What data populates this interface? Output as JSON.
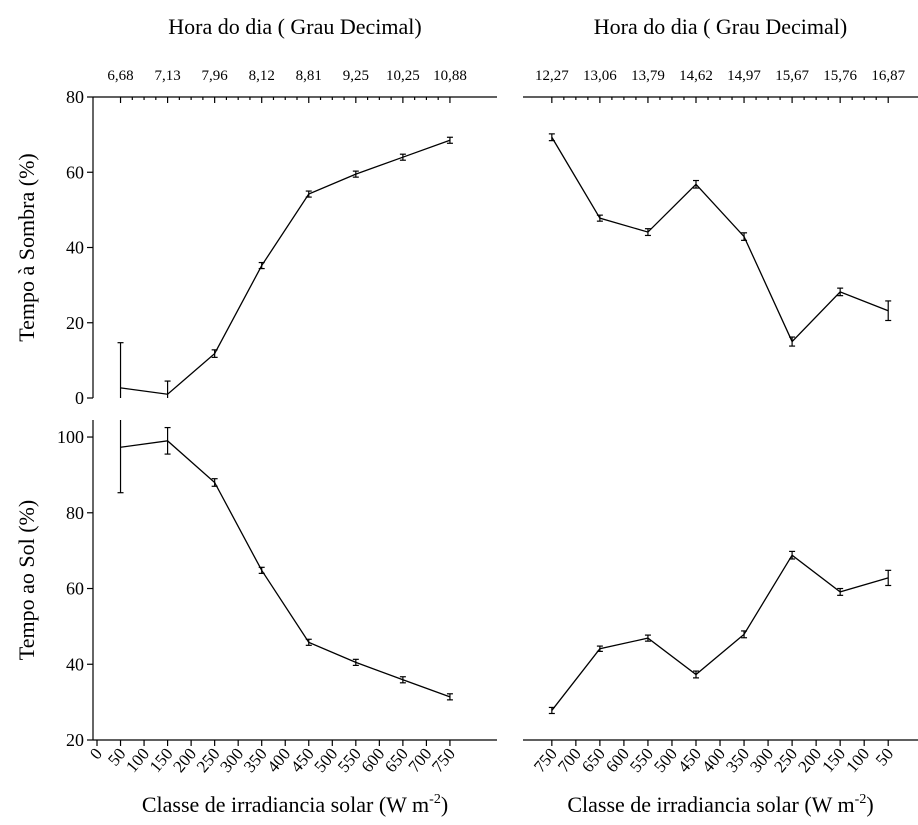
{
  "chart_data": [
    {
      "type": "line",
      "title": "Hora do dia ( Grau Decimal)",
      "ylabel": "Tempo à Sombra (%)",
      "x": [
        50,
        150,
        250,
        350,
        450,
        550,
        650,
        750
      ],
      "top_labels": [
        "6,68",
        "7,13",
        "7,96",
        "8,12",
        "8,81",
        "9,25",
        "10,25",
        "10,88"
      ],
      "values": [
        2.7,
        1.0,
        11.8,
        35.2,
        54.2,
        59.5,
        64.0,
        68.5
      ],
      "errors": [
        12,
        3.5,
        1,
        0.8,
        0.8,
        0.8,
        0.8,
        0.8
      ],
      "color": "#000000",
      "xlim": [
        -8.5,
        850
      ],
      "ylim": [
        0,
        80
      ],
      "yticks": [
        0,
        20,
        40,
        60,
        80
      ]
    },
    {
      "type": "line",
      "title": "Hora do dia ( Grau Decimal)",
      "x": [
        750,
        650,
        550,
        450,
        350,
        250,
        150,
        50
      ],
      "top_labels": [
        "12,27",
        "13,06",
        "13,79",
        "14,62",
        "14,97",
        "15,67",
        "15,76",
        "16,87"
      ],
      "values": [
        69.3,
        47.8,
        44.1,
        56.8,
        42.9,
        15.0,
        28.2,
        23.2
      ],
      "errors": [
        0.9,
        0.8,
        0.9,
        1,
        1,
        1.2,
        1,
        2.6
      ],
      "color": "#000000",
      "xlim": [
        810,
        -12
      ],
      "ylim": [
        0,
        80
      ]
    },
    {
      "type": "line",
      "ylabel": "Tempo ao Sol (%)",
      "xlabel": "Classe de irradiancia solar (W m",
      "xlabel_sup": "-2",
      "xlabel_end": ")",
      "x": [
        50,
        150,
        250,
        350,
        450,
        550,
        650,
        750
      ],
      "values": [
        97.3,
        99.0,
        88.0,
        64.8,
        45.8,
        40.5,
        35.9,
        31.4
      ],
      "errors": [
        12,
        3.5,
        1,
        0.8,
        0.8,
        0.8,
        0.8,
        0.8
      ],
      "color": "#000000",
      "xlim": [
        -8.5,
        850
      ],
      "ylim": [
        20,
        104.5
      ],
      "yticks": [
        20,
        40,
        60,
        80,
        100
      ],
      "xticks": [
        0,
        50,
        100,
        150,
        200,
        250,
        300,
        350,
        400,
        450,
        500,
        550,
        600,
        650,
        700,
        750
      ]
    },
    {
      "type": "line",
      "xlabel": "Classe de irradiancia solar (W m",
      "xlabel_sup": "-2",
      "xlabel_end": ")",
      "x": [
        750,
        650,
        550,
        450,
        350,
        250,
        150,
        50
      ],
      "values": [
        27.8,
        44.1,
        46.9,
        37.3,
        47.9,
        68.8,
        59.1,
        62.8
      ],
      "errors": [
        0.8,
        0.7,
        0.8,
        0.9,
        0.9,
        1,
        0.9,
        2
      ],
      "color": "#000000",
      "xlim": [
        810,
        -12
      ],
      "ylim": [
        20,
        104.5
      ],
      "xticks": [
        750,
        700,
        650,
        600,
        550,
        500,
        450,
        400,
        350,
        300,
        250,
        200,
        150,
        100,
        50
      ]
    }
  ]
}
